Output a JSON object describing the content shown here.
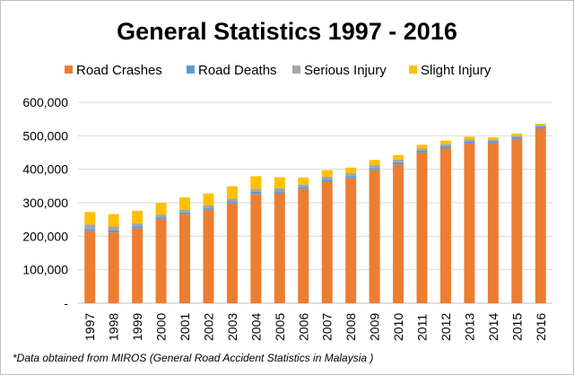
{
  "chart_data": {
    "type": "bar",
    "stacked": true,
    "title": "General Statistics 1997 - 2016",
    "categories": [
      "1997",
      "1998",
      "1999",
      "2000",
      "2001",
      "2002",
      "2003",
      "2004",
      "2005",
      "2006",
      "2007",
      "2008",
      "2009",
      "2010",
      "2011",
      "2012",
      "2013",
      "2014",
      "2015",
      "2016"
    ],
    "series": [
      {
        "name": "Road Crashes",
        "color": "#ED7D31",
        "values": [
          215000,
          211000,
          223000,
          250000,
          265000,
          279000,
          298000,
          326000,
          328000,
          341000,
          363000,
          373000,
          397000,
          414000,
          449000,
          462000,
          477000,
          477000,
          489000,
          521000
        ]
      },
      {
        "name": "Road Deaths",
        "color": "#5B9BD5",
        "values": [
          6300,
          6000,
          6000,
          6000,
          5800,
          5900,
          6300,
          6200,
          6200,
          6300,
          6300,
          6500,
          6700,
          6900,
          6900,
          6900,
          6900,
          6700,
          6700,
          7200
        ]
      },
      {
        "name": "Serious Injury",
        "color": "#A5A5A5",
        "values": [
          14000,
          12000,
          10000,
          9000,
          8000,
          8000,
          8000,
          9000,
          9000,
          7000,
          9000,
          8800,
          8600,
          7800,
          6300,
          5900,
          5000,
          4600,
          4100,
          3300
        ]
      },
      {
        "name": "Slight Injury",
        "color": "#FFC000",
        "values": [
          37000,
          37000,
          37000,
          35000,
          37000,
          35000,
          37000,
          38000,
          33000,
          21000,
          19000,
          16900,
          15800,
          13500,
          11000,
          10800,
          8400,
          7300,
          6900,
          4500
        ]
      }
    ],
    "ylim": [
      0,
      600000
    ],
    "yticks": [
      0,
      100000,
      200000,
      300000,
      400000,
      500000,
      600000
    ],
    "ytick_labels": [
      "-",
      "100,000",
      "200,000",
      "300,000",
      "400,000",
      "500,000",
      "600,000"
    ],
    "grid": true,
    "legend": "top",
    "note": "*Data obtained from MIROS (General Road Accident Statistics in Malaysia )"
  }
}
